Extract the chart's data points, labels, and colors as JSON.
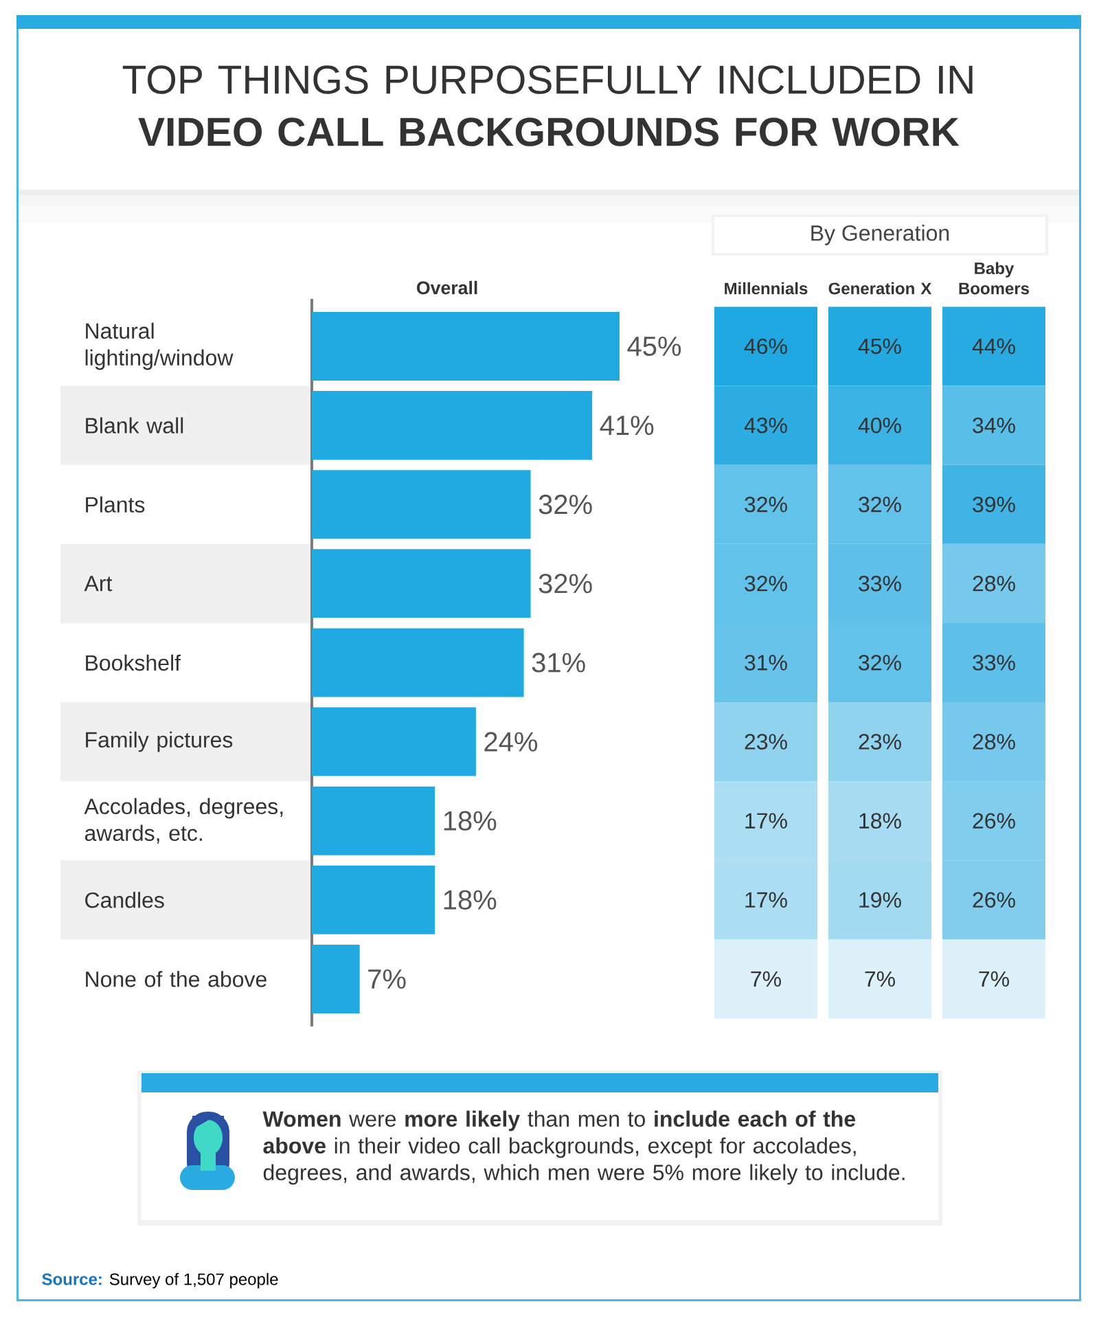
{
  "chart_data": [
    {
      "type": "bar",
      "orientation": "horizontal",
      "title": "TOP THINGS PURPOSEFULLY INCLUDED IN **VIDEO CALL BACKGROUNDS FOR WORK**",
      "xlabel": "Overall",
      "categories": [
        "Natural lighting/window",
        "Blank wall",
        "Plants",
        "Art",
        "Bookshelf",
        "Family pictures",
        "Accolades, degrees, awards, etc.",
        "Candles",
        "None of the above"
      ],
      "values": [
        45,
        41,
        32,
        32,
        31,
        24,
        18,
        18,
        7
      ],
      "value_labels": [
        "45%",
        "41%",
        "32%",
        "32%",
        "31%",
        "24%",
        "18%",
        "18%",
        "7%"
      ],
      "color": "#21a9e1",
      "annotations": [
        "**Women** were **more likely** than men to **include each of the above** in their video call backgrounds, except for accolades, degrees, and awards, which men were 5% more likely to include.",
        "**Source:** Survey of 1,507 people"
      ]
    },
    {
      "type": "heatmap",
      "title": "By Generation",
      "categories": [
        "Millennials",
        "Generation X",
        "Baby Boomers"
      ],
      "y_categories": [
        null,
        null,
        null,
        null,
        null,
        null,
        null,
        null,
        null
      ],
      "cells": [
        [
          46,
          45,
          44
        ],
        [
          43,
          40,
          34
        ],
        [
          32,
          32,
          39
        ],
        [
          32,
          33,
          28
        ],
        [
          31,
          32,
          33
        ],
        [
          23,
          23,
          28
        ],
        [
          17,
          18,
          26
        ],
        [
          17,
          19,
          26
        ],
        [
          7,
          7,
          7
        ]
      ],
      "cell_labels": [
        [
          "46%",
          "45%",
          "44%"
        ],
        [
          "43%",
          "40%",
          "34%"
        ],
        [
          "32%",
          "32%",
          "39%"
        ],
        [
          "32%",
          "33%",
          "28%"
        ],
        [
          "31%",
          "32%",
          "33%"
        ],
        [
          "23%",
          "23%",
          "28%"
        ],
        [
          "17%",
          "18%",
          "26%"
        ],
        [
          "17%",
          "19%",
          "26%"
        ],
        [
          "7%",
          "7%",
          "7%"
        ]
      ]
    }
  ]
}
